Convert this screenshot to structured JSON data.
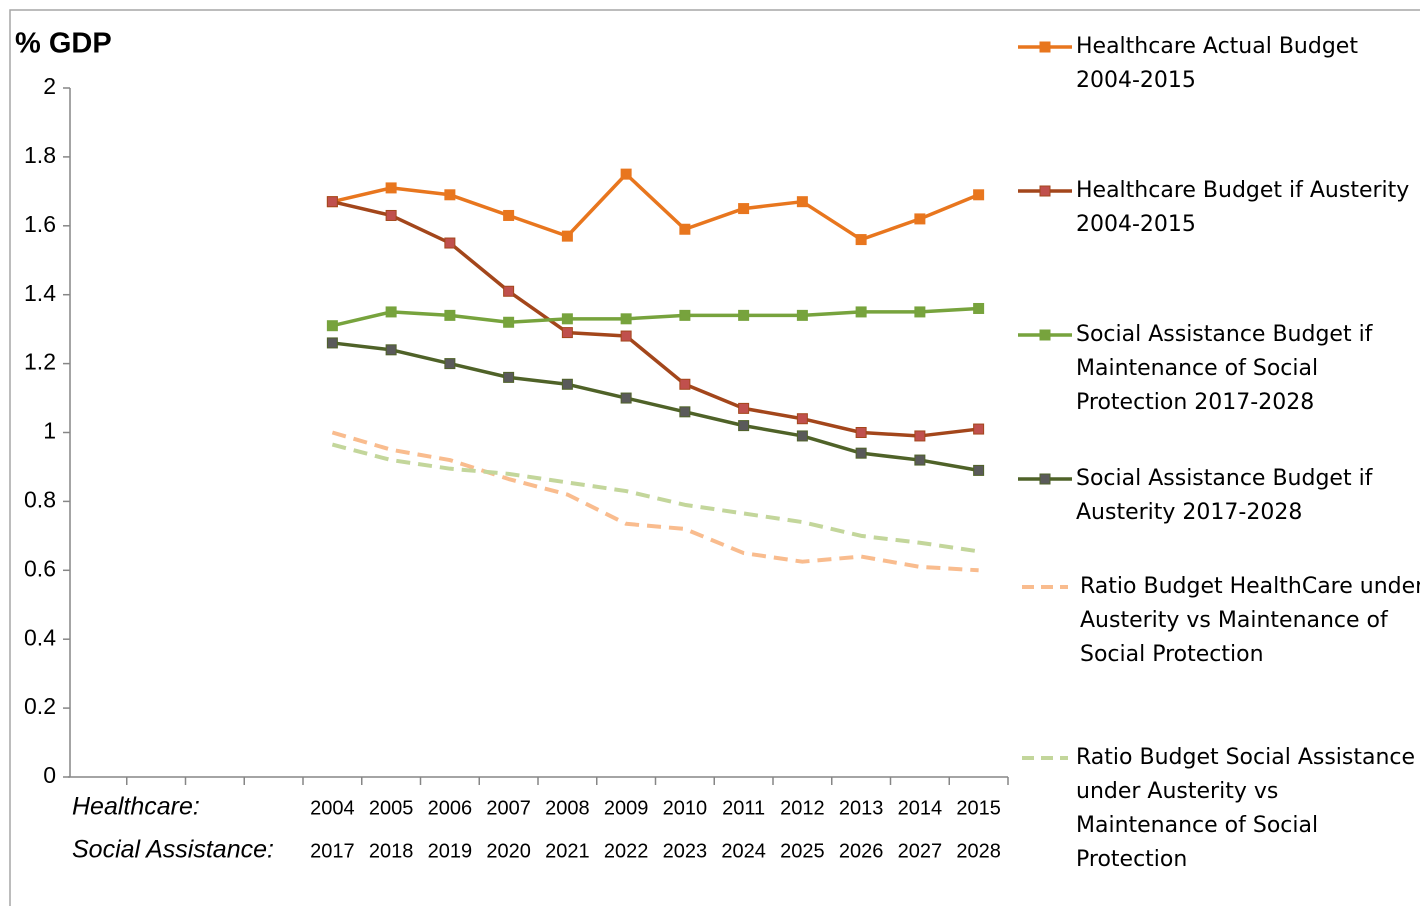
{
  "chart_data": {
    "type": "line",
    "y_axis_title": "% GDP",
    "ylim": [
      0,
      2
    ],
    "yticks": [
      0,
      0.2,
      0.4,
      0.6,
      0.8,
      1,
      1.2,
      1.4,
      1.6,
      1.8,
      2
    ],
    "grid": false,
    "legend": "right",
    "category_rows": [
      {
        "label": "Healthcare:",
        "categories": [
          null,
          null,
          null,
          null,
          "2004",
          "2005",
          "2006",
          "2007",
          "2008",
          "2009",
          "2010",
          "2011",
          "2012",
          "2013",
          "2014",
          "2015"
        ]
      },
      {
        "label": "Social Assistance:",
        "categories": [
          null,
          null,
          null,
          null,
          "2017",
          "2018",
          "2019",
          "2020",
          "2021",
          "2022",
          "2023",
          "2024",
          "2025",
          "2026",
          "2027",
          "2028"
        ]
      }
    ],
    "series": [
      {
        "name": "Healthcare Actual Budget 2004-2015",
        "color": "#e8761e",
        "marker_color": "#e8761e",
        "marker": "square",
        "dashed": false,
        "values": [
          null,
          null,
          null,
          null,
          1.67,
          1.71,
          1.69,
          1.63,
          1.57,
          1.75,
          1.59,
          1.65,
          1.67,
          1.56,
          1.62,
          1.69
        ]
      },
      {
        "name": "Healthcare Budget if Austerity 2004-2015",
        "color": "#a3461b",
        "marker_color": "#c0504d",
        "marker": "square",
        "dashed": false,
        "values": [
          null,
          null,
          null,
          null,
          1.67,
          1.63,
          1.55,
          1.41,
          1.29,
          1.28,
          1.14,
          1.07,
          1.04,
          1.0,
          0.99,
          1.01
        ]
      },
      {
        "name": "Social Assistance Budget if Maintenance of Social Protection 2017-2028",
        "color": "#77a33d",
        "marker_color": "#77a33d",
        "marker": "square",
        "dashed": false,
        "values": [
          null,
          null,
          null,
          null,
          1.31,
          1.35,
          1.34,
          1.32,
          1.33,
          1.33,
          1.34,
          1.34,
          1.34,
          1.35,
          1.35,
          1.36
        ]
      },
      {
        "name": "Social Assistance Budget if Austerity 2017-2028",
        "color": "#4f6228",
        "marker_color": "#5a5a5a",
        "marker": "square",
        "dashed": false,
        "values": [
          null,
          null,
          null,
          null,
          1.26,
          1.24,
          1.2,
          1.16,
          1.14,
          1.1,
          1.06,
          1.02,
          0.99,
          0.94,
          0.92,
          0.89
        ]
      },
      {
        "name": "Ratio Budget HealthCare under Austerity vs Maintenance of Social Protection",
        "color": "#f9bc8e",
        "marker_color": null,
        "marker": null,
        "dashed": true,
        "values": [
          null,
          null,
          null,
          null,
          1.0,
          0.95,
          0.92,
          0.865,
          0.82,
          0.735,
          0.72,
          0.65,
          0.625,
          0.64,
          0.61,
          0.6
        ]
      },
      {
        "name": "Ratio Budget Social Assistance under Austerity vs Maintenance of Social Protection",
        "color": "#c3d69b",
        "marker_color": null,
        "marker": null,
        "dashed": true,
        "values": [
          null,
          null,
          null,
          null,
          0.965,
          0.92,
          0.895,
          0.88,
          0.855,
          0.83,
          0.79,
          0.765,
          0.74,
          0.7,
          0.68,
          0.655
        ]
      }
    ]
  }
}
